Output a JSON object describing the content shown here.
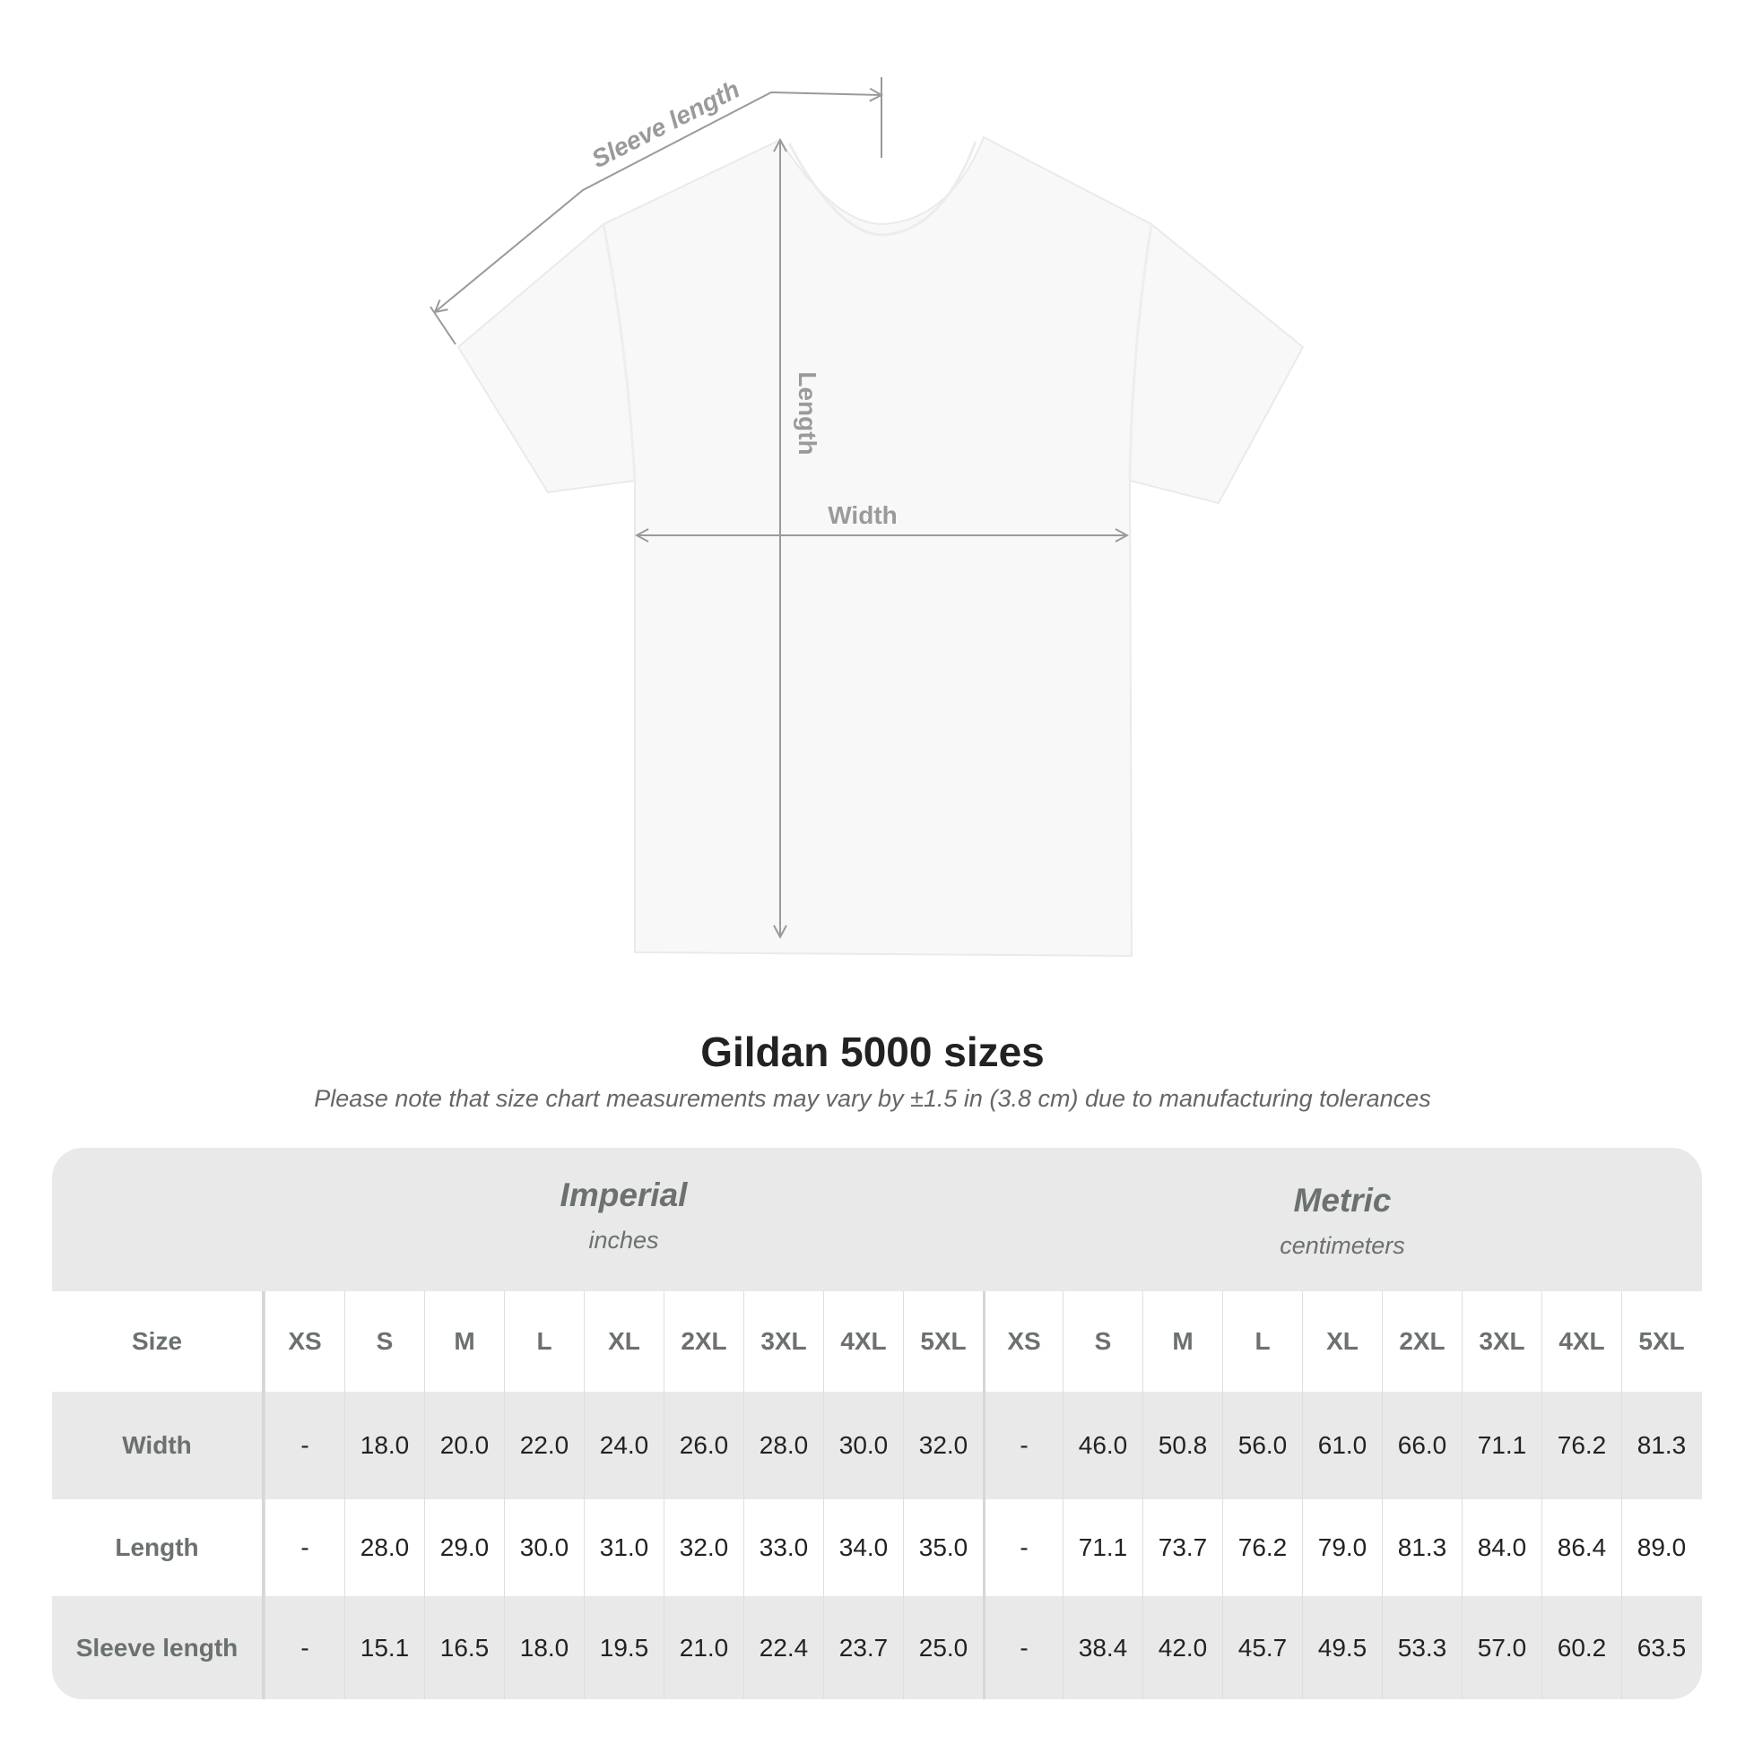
{
  "diagram": {
    "labels": {
      "sleeve": "Sleeve length",
      "length": "Length",
      "width": "Width"
    },
    "colors": {
      "annotation": "#9a9a9a",
      "shirt": "#f8f8f8"
    }
  },
  "title": "Gildan 5000 sizes",
  "note": "Please note that size chart measurements may vary by ±1.5 in (3.8 cm) due to manufacturing tolerances",
  "table": {
    "imperial": {
      "name": "Imperial",
      "unit": "inches"
    },
    "metric": {
      "name": "Metric",
      "unit": "centimeters"
    },
    "size_label": "Size",
    "sizes": [
      "XS",
      "S",
      "M",
      "L",
      "XL",
      "2XL",
      "3XL",
      "4XL",
      "5XL"
    ],
    "rows": [
      {
        "label": "Width",
        "imperial": [
          "-",
          "18.0",
          "20.0",
          "22.0",
          "24.0",
          "26.0",
          "28.0",
          "30.0",
          "32.0"
        ],
        "metric": [
          "-",
          "46.0",
          "50.8",
          "56.0",
          "61.0",
          "66.0",
          "71.1",
          "76.2",
          "81.3"
        ]
      },
      {
        "label": "Length",
        "imperial": [
          "-",
          "28.0",
          "29.0",
          "30.0",
          "31.0",
          "32.0",
          "33.0",
          "34.0",
          "35.0"
        ],
        "metric": [
          "-",
          "71.1",
          "73.7",
          "76.2",
          "79.0",
          "81.3",
          "84.0",
          "86.4",
          "89.0"
        ]
      },
      {
        "label": "Sleeve length",
        "imperial": [
          "-",
          "15.1",
          "16.5",
          "18.0",
          "19.5",
          "21.0",
          "22.4",
          "23.7",
          "25.0"
        ],
        "metric": [
          "-",
          "38.4",
          "42.0",
          "45.7",
          "49.5",
          "53.3",
          "57.0",
          "60.2",
          "63.5"
        ]
      }
    ]
  }
}
